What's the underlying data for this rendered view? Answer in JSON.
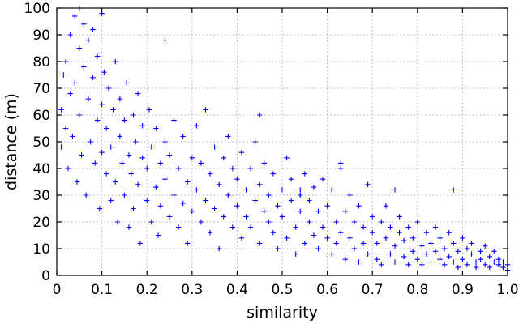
{
  "chart_data": {
    "type": "scatter",
    "xlabel": "similarity",
    "ylabel": "distance (m)",
    "xlim": [
      0,
      1.0
    ],
    "ylim": [
      0,
      100
    ],
    "x_ticks": [
      "0",
      "0.1",
      "0.2",
      "0.3",
      "0.4",
      "0.5",
      "0.6",
      "0.7",
      "0.8",
      "0.9",
      "1.0"
    ],
    "y_ticks": [
      "0",
      "10",
      "20",
      "30",
      "40",
      "50",
      "60",
      "70",
      "80",
      "90",
      "100"
    ],
    "grid": true,
    "legend": "none",
    "marker": "+",
    "color": "#0000ff",
    "series": [
      {
        "points": [
          [
            0.01,
            62
          ],
          [
            0.01,
            48
          ],
          [
            0.015,
            75
          ],
          [
            0.02,
            55
          ],
          [
            0.02,
            80
          ],
          [
            0.025,
            40
          ],
          [
            0.03,
            68
          ],
          [
            0.03,
            90
          ],
          [
            0.035,
            52
          ],
          [
            0.04,
            72
          ],
          [
            0.04,
            97
          ],
          [
            0.045,
            35
          ],
          [
            0.05,
            60
          ],
          [
            0.05,
            85
          ],
          [
            0.055,
            45
          ],
          [
            0.06,
            78
          ],
          [
            0.06,
            94
          ],
          [
            0.065,
            30
          ],
          [
            0.07,
            66
          ],
          [
            0.07,
            88
          ],
          [
            0.075,
            50
          ],
          [
            0.08,
            74
          ],
          [
            0.08,
            92
          ],
          [
            0.085,
            42
          ],
          [
            0.09,
            58
          ],
          [
            0.09,
            82
          ],
          [
            0.095,
            25
          ],
          [
            0.1,
            64
          ],
          [
            0.1,
            46
          ],
          [
            0.105,
            76
          ],
          [
            0.11,
            38
          ],
          [
            0.11,
            55
          ],
          [
            0.115,
            70
          ],
          [
            0.12,
            28
          ],
          [
            0.12,
            48
          ],
          [
            0.125,
            62
          ],
          [
            0.13,
            35
          ],
          [
            0.13,
            80
          ],
          [
            0.135,
            20
          ],
          [
            0.14,
            52
          ],
          [
            0.14,
            66
          ],
          [
            0.145,
            42
          ],
          [
            0.15,
            30
          ],
          [
            0.15,
            58
          ],
          [
            0.155,
            72
          ],
          [
            0.16,
            18
          ],
          [
            0.16,
            45
          ],
          [
            0.165,
            38
          ],
          [
            0.17,
            60
          ],
          [
            0.17,
            25
          ],
          [
            0.175,
            50
          ],
          [
            0.18,
            34
          ],
          [
            0.18,
            68
          ],
          [
            0.185,
            12
          ],
          [
            0.19,
            44
          ],
          [
            0.19,
            56
          ],
          [
            0.2,
            28
          ],
          [
            0.2,
            40
          ],
          [
            0.205,
            62
          ],
          [
            0.21,
            20
          ],
          [
            0.21,
            48
          ],
          [
            0.22,
            33
          ],
          [
            0.22,
            55
          ],
          [
            0.225,
            15
          ],
          [
            0.23,
            42
          ],
          [
            0.23,
            26
          ],
          [
            0.24,
            50
          ],
          [
            0.24,
            36
          ],
          [
            0.25,
            22
          ],
          [
            0.25,
            45
          ],
          [
            0.26,
            58
          ],
          [
            0.26,
            30
          ],
          [
            0.27,
            18
          ],
          [
            0.27,
            40
          ],
          [
            0.28,
            52
          ],
          [
            0.28,
            27
          ],
          [
            0.29,
            35
          ],
          [
            0.29,
            12
          ],
          [
            0.3,
            44
          ],
          [
            0.3,
            24
          ],
          [
            0.31,
            56
          ],
          [
            0.31,
            32
          ],
          [
            0.32,
            20
          ],
          [
            0.32,
            42
          ],
          [
            0.33,
            28
          ],
          [
            0.33,
            62
          ],
          [
            0.34,
            16
          ],
          [
            0.34,
            38
          ],
          [
            0.35,
            48
          ],
          [
            0.35,
            25
          ],
          [
            0.36,
            34
          ],
          [
            0.36,
            10
          ],
          [
            0.37,
            44
          ],
          [
            0.37,
            22
          ],
          [
            0.38,
            30
          ],
          [
            0.38,
            52
          ],
          [
            0.39,
            18
          ],
          [
            0.39,
            40
          ],
          [
            0.4,
            26
          ],
          [
            0.4,
            36
          ],
          [
            0.41,
            14
          ],
          [
            0.41,
            46
          ],
          [
            0.42,
            22
          ],
          [
            0.42,
            32
          ],
          [
            0.43,
            40
          ],
          [
            0.43,
            18
          ],
          [
            0.44,
            28
          ],
          [
            0.44,
            50
          ],
          [
            0.45,
            12
          ],
          [
            0.45,
            34
          ],
          [
            0.46,
            24
          ],
          [
            0.46,
            42
          ],
          [
            0.47,
            20
          ],
          [
            0.47,
            30
          ],
          [
            0.48,
            16
          ],
          [
            0.48,
            38
          ],
          [
            0.49,
            26
          ],
          [
            0.49,
            10
          ],
          [
            0.5,
            32
          ],
          [
            0.5,
            22
          ],
          [
            0.51,
            44
          ],
          [
            0.51,
            14
          ],
          [
            0.52,
            28
          ],
          [
            0.52,
            36
          ],
          [
            0.53,
            18
          ],
          [
            0.53,
            8
          ],
          [
            0.54,
            30
          ],
          [
            0.54,
            24
          ],
          [
            0.55,
            12
          ],
          [
            0.55,
            38
          ],
          [
            0.56,
            20
          ],
          [
            0.56,
            28
          ],
          [
            0.57,
            15
          ],
          [
            0.57,
            33
          ],
          [
            0.58,
            10
          ],
          [
            0.58,
            24
          ],
          [
            0.59,
            18
          ],
          [
            0.59,
            36
          ],
          [
            0.6,
            14
          ],
          [
            0.6,
            26
          ],
          [
            0.61,
            8
          ],
          [
            0.61,
            32
          ],
          [
            0.62,
            20
          ],
          [
            0.62,
            12
          ],
          [
            0.63,
            40
          ],
          [
            0.63,
            16
          ],
          [
            0.64,
            24
          ],
          [
            0.64,
            6
          ],
          [
            0.65,
            30
          ],
          [
            0.65,
            14
          ],
          [
            0.66,
            20
          ],
          [
            0.66,
            10
          ],
          [
            0.67,
            26
          ],
          [
            0.67,
            5
          ],
          [
            0.68,
            18
          ],
          [
            0.68,
            12
          ],
          [
            0.69,
            34
          ],
          [
            0.69,
            8
          ],
          [
            0.7,
            16
          ],
          [
            0.7,
            22
          ],
          [
            0.71,
            6
          ],
          [
            0.71,
            12
          ],
          [
            0.72,
            20
          ],
          [
            0.72,
            4
          ],
          [
            0.73,
            14
          ],
          [
            0.73,
            26
          ],
          [
            0.74,
            8
          ],
          [
            0.74,
            18
          ],
          [
            0.75,
            5
          ],
          [
            0.75,
            11
          ],
          [
            0.76,
            16
          ],
          [
            0.76,
            22
          ],
          [
            0.77,
            7
          ],
          [
            0.77,
            13
          ],
          [
            0.78,
            4
          ],
          [
            0.78,
            18
          ],
          [
            0.79,
            9
          ],
          [
            0.79,
            14
          ],
          [
            0.8,
            6
          ],
          [
            0.8,
            20
          ],
          [
            0.81,
            11
          ],
          [
            0.81,
            4
          ],
          [
            0.82,
            16
          ],
          [
            0.82,
            8
          ],
          [
            0.83,
            12
          ],
          [
            0.83,
            5
          ],
          [
            0.84,
            18
          ],
          [
            0.84,
            9
          ],
          [
            0.85,
            6
          ],
          [
            0.85,
            14
          ],
          [
            0.86,
            4
          ],
          [
            0.86,
            10
          ],
          [
            0.87,
            16
          ],
          [
            0.87,
            7
          ],
          [
            0.88,
            12
          ],
          [
            0.88,
            5
          ],
          [
            0.89,
            9
          ],
          [
            0.89,
            3
          ],
          [
            0.9,
            14
          ],
          [
            0.9,
            6
          ],
          [
            0.91,
            10
          ],
          [
            0.91,
            4
          ],
          [
            0.92,
            8
          ],
          [
            0.92,
            12
          ],
          [
            0.93,
            5
          ],
          [
            0.93,
            3
          ],
          [
            0.94,
            9
          ],
          [
            0.94,
            6
          ],
          [
            0.95,
            4
          ],
          [
            0.95,
            11
          ],
          [
            0.96,
            7
          ],
          [
            0.96,
            3
          ],
          [
            0.97,
            5
          ],
          [
            0.97,
            9
          ],
          [
            0.98,
            4
          ],
          [
            0.98,
            6
          ],
          [
            0.99,
            3
          ],
          [
            0.99,
            5
          ],
          [
            1.0,
            4
          ],
          [
            1.0,
            2
          ],
          [
            0.54,
            32
          ],
          [
            0.75,
            32
          ],
          [
            0.88,
            32
          ],
          [
            0.63,
            42
          ],
          [
            0.45,
            60
          ],
          [
            0.24,
            88
          ],
          [
            0.1,
            98
          ],
          [
            0.05,
            100
          ]
        ]
      }
    ]
  }
}
